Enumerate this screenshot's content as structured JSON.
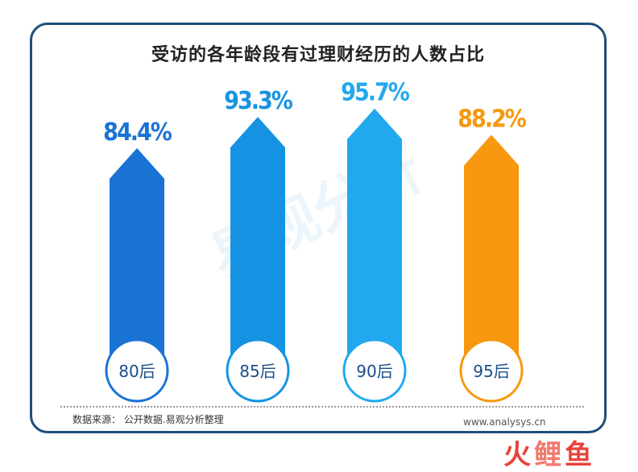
{
  "title": "受访的各年龄段有过理财经历的人数占比",
  "source": "数据来源： 公开数据.易观分析整理",
  "website": "www.analysys.cn",
  "brand": [
    "火",
    "鲤",
    "鱼"
  ],
  "watermark": "易观分析",
  "colors": {
    "frame": "#1f4e79",
    "bar_80": "#1a73d4",
    "bar_85": "#1593e2",
    "bar_90": "#22a8ee",
    "bar_95": "#f7980f"
  },
  "chart_data": {
    "type": "bar",
    "categories": [
      "80后",
      "85后",
      "90后",
      "95后"
    ],
    "values": [
      84.4,
      93.3,
      95.7,
      88.2
    ],
    "value_labels": [
      "84.4%",
      "93.3%",
      "95.7%",
      "88.2%"
    ],
    "colors": [
      "#1a73d4",
      "#1593e2",
      "#22a8ee",
      "#f7980f"
    ],
    "title": "受访的各年龄段有过理财经历的人数占比",
    "xlabel": "",
    "ylabel": "",
    "grid": false
  }
}
